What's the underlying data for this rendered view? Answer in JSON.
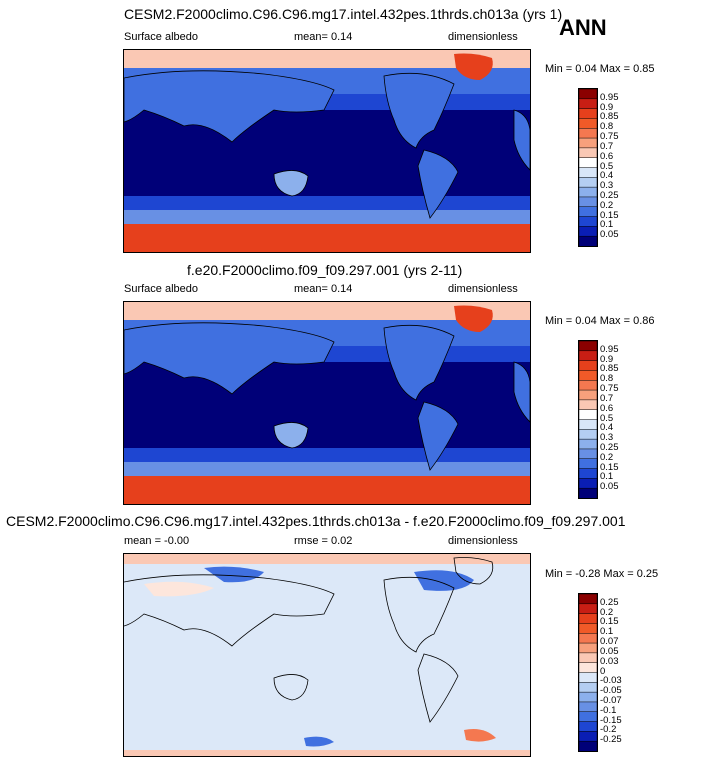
{
  "season": "ANN",
  "panels": [
    {
      "title": "CESM2.F2000climo.C96.C96.mg17.intel.432pes.1thrds.ch013a (yrs 1)",
      "left_label": "Surface albedo",
      "center_label": "mean=  0.14",
      "right_label": "dimensionless",
      "min_label": "Min =",
      "min_value": "0.04",
      "max_label": "Max =",
      "max_value": "0.85",
      "colorbar_labels": [
        "0.95",
        "0.9",
        "0.85",
        "0.8",
        "0.75",
        "0.7",
        "0.6",
        "0.5",
        "0.4",
        "0.3",
        "0.25",
        "0.2",
        "0.15",
        "0.1",
        "0.05"
      ],
      "colorbar_colors": [
        "#8b0000",
        "#c81e14",
        "#e6401c",
        "#f05a28",
        "#f47850",
        "#f7a07c",
        "#fac8b4",
        "#ffffff",
        "#d8e6f8",
        "#b4cef2",
        "#8cb0ec",
        "#6890e4",
        "#4070e0",
        "#1e46d2",
        "#0a1eb4",
        "#000078"
      ]
    },
    {
      "title": "f.e20.F2000climo.f09_f09.297.001 (yrs 2-11)",
      "left_label": "Surface albedo",
      "center_label": "mean=  0.14",
      "right_label": "dimensionless",
      "min_label": "Min =",
      "min_value": "0.04",
      "max_label": "Max =",
      "max_value": "0.86",
      "colorbar_labels": [
        "0.95",
        "0.9",
        "0.85",
        "0.8",
        "0.75",
        "0.7",
        "0.6",
        "0.5",
        "0.4",
        "0.3",
        "0.25",
        "0.2",
        "0.15",
        "0.1",
        "0.05"
      ],
      "colorbar_colors": [
        "#8b0000",
        "#c81e14",
        "#e6401c",
        "#f05a28",
        "#f47850",
        "#f7a07c",
        "#fac8b4",
        "#ffffff",
        "#d8e6f8",
        "#b4cef2",
        "#8cb0ec",
        "#6890e4",
        "#4070e0",
        "#1e46d2",
        "#0a1eb4",
        "#000078"
      ]
    },
    {
      "title": "CESM2.F2000climo.C96.C96.mg17.intel.432pes.1thrds.ch013a - f.e20.F2000climo.f09_f09.297.001",
      "left_label": "mean =  -0.00",
      "center_label": "rmse =  0.02",
      "right_label": "dimensionless",
      "min_label": "Min =",
      "min_value": "-0.28",
      "max_label": "Max =",
      "max_value": "0.25",
      "colorbar_labels": [
        "0.25",
        "0.2",
        "0.15",
        "0.1",
        "0.07",
        "0.05",
        "0.03",
        "0",
        "-0.03",
        "-0.05",
        "-0.07",
        "-0.1",
        "-0.15",
        "-0.2",
        "-0.25"
      ],
      "colorbar_colors": [
        "#8b0000",
        "#c81e14",
        "#e6401c",
        "#f05a28",
        "#f47850",
        "#f7a07c",
        "#fac8b4",
        "#fde6dc",
        "#dce8f8",
        "#b4cef2",
        "#8cb0ec",
        "#6890e4",
        "#4070e0",
        "#1e46d2",
        "#0a1eb4",
        "#000078"
      ]
    }
  ],
  "chart_data": [
    {
      "type": "heatmap",
      "title": "CESM2.F2000climo.C96.C96.mg17.intel.432pes.1thrds.ch013a (yrs 1)",
      "variable": "Surface albedo",
      "units": "dimensionless",
      "mean": 0.14,
      "min": 0.04,
      "max": 0.85,
      "levels": [
        0.05,
        0.1,
        0.15,
        0.2,
        0.25,
        0.3,
        0.4,
        0.5,
        0.6,
        0.7,
        0.75,
        0.8,
        0.85,
        0.9,
        0.95
      ]
    },
    {
      "type": "heatmap",
      "title": "f.e20.F2000climo.f09_f09.297.001 (yrs 2-11)",
      "variable": "Surface albedo",
      "units": "dimensionless",
      "mean": 0.14,
      "min": 0.04,
      "max": 0.86,
      "levels": [
        0.05,
        0.1,
        0.15,
        0.2,
        0.25,
        0.3,
        0.4,
        0.5,
        0.6,
        0.7,
        0.75,
        0.8,
        0.85,
        0.9,
        0.95
      ]
    },
    {
      "type": "heatmap",
      "title": "CESM2.F2000climo.C96.C96.mg17.intel.432pes.1thrds.ch013a - f.e20.F2000climo.f09_f09.297.001",
      "units": "dimensionless",
      "mean": -0.0,
      "rmse": 0.02,
      "min": -0.28,
      "max": 0.25,
      "levels": [
        -0.25,
        -0.2,
        -0.15,
        -0.1,
        -0.07,
        -0.05,
        -0.03,
        0,
        0.03,
        0.05,
        0.07,
        0.1,
        0.15,
        0.2,
        0.25
      ]
    }
  ]
}
